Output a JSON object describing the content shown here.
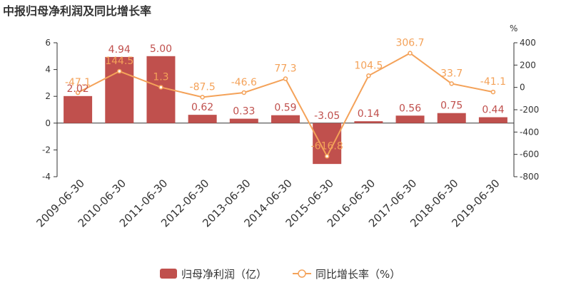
{
  "chart_data": {
    "type": "bar",
    "title": "中报归母净利润及同比增长率",
    "categories": [
      "2009-06-30",
      "2010-06-30",
      "2011-06-30",
      "2012-06-30",
      "2013-06-30",
      "2014-06-30",
      "2015-06-30",
      "2016-06-30",
      "2017-06-30",
      "2018-06-30",
      "2019-06-30"
    ],
    "series": [
      {
        "name": "归母净利润（亿）",
        "type": "bar",
        "axis": "left",
        "color": "#c0504d",
        "values": [
          2.02,
          4.94,
          5.0,
          0.62,
          0.33,
          0.59,
          -3.05,
          0.14,
          0.56,
          0.75,
          0.44
        ],
        "labels": [
          "2.02",
          "4.94",
          "5.00",
          "0.62",
          "0.33",
          "0.59",
          "-3.05",
          "0.14",
          "0.56",
          "0.75",
          "0.44"
        ]
      },
      {
        "name": "同比增长率（%）",
        "type": "line",
        "axis": "right",
        "color": "#f4a259",
        "values": [
          -47.1,
          144.5,
          1.3,
          -87.5,
          -46.6,
          77.3,
          -616.8,
          104.5,
          306.7,
          33.7,
          -41.1
        ],
        "labels": [
          "-47.1",
          "144.5",
          "1.3",
          "-87.5",
          "-46.6",
          "77.3",
          "-616.8",
          "104.5",
          "306.7",
          "33.7",
          "-41.1"
        ]
      }
    ],
    "y_left": {
      "min": -4,
      "max": 6,
      "ticks": [
        "6",
        "4",
        "2",
        "0",
        "-2",
        "-4"
      ]
    },
    "y_right": {
      "unit": "%",
      "min": -800,
      "max": 400,
      "ticks": [
        "400",
        "200",
        "0",
        "-200",
        "-400",
        "-600",
        "-800"
      ]
    },
    "grid": false,
    "legend_position": "bottom"
  }
}
